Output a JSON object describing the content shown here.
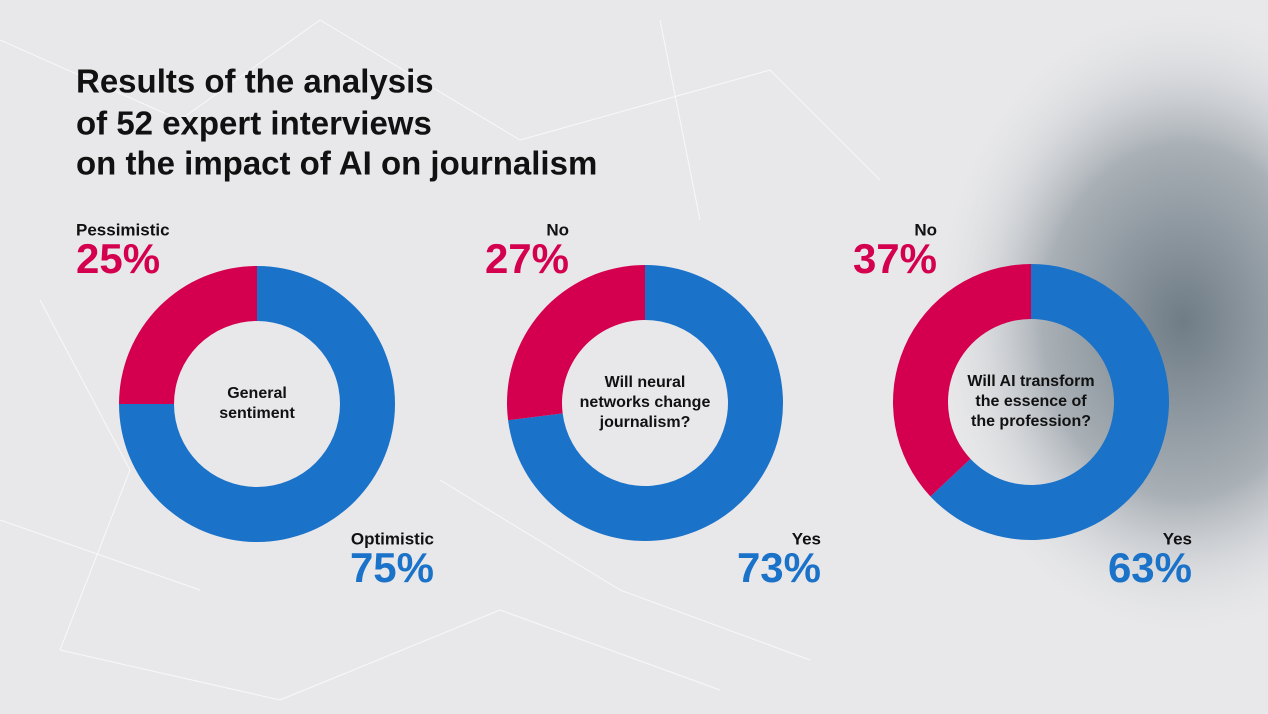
{
  "title": [
    "Results of the analysis",
    "of 52 expert interviews",
    "on the impact of AI on journalism"
  ],
  "chart_data": [
    {
      "type": "donut",
      "center_label": [
        "General",
        "sentiment"
      ],
      "categories": [
        "Pessimistic",
        "Optimistic"
      ],
      "values": [
        25,
        75
      ],
      "value_labels": [
        "25%",
        "75%"
      ],
      "colors": [
        "#d4004f",
        "#1a72c9"
      ]
    },
    {
      "type": "donut",
      "center_label": [
        "Will neural",
        "networks change",
        "journalism?"
      ],
      "categories": [
        "No",
        "Yes"
      ],
      "values": [
        27,
        73
      ],
      "value_labels": [
        "27%",
        "73%"
      ],
      "colors": [
        "#d4004f",
        "#1a72c9"
      ]
    },
    {
      "type": "donut",
      "center_label": [
        "Will AI transform",
        "the essence of",
        "the profession?"
      ],
      "categories": [
        "No",
        "Yes"
      ],
      "values": [
        37,
        63
      ],
      "value_labels": [
        "37%",
        "63%"
      ],
      "colors": [
        "#d4004f",
        "#1a72c9"
      ]
    }
  ]
}
